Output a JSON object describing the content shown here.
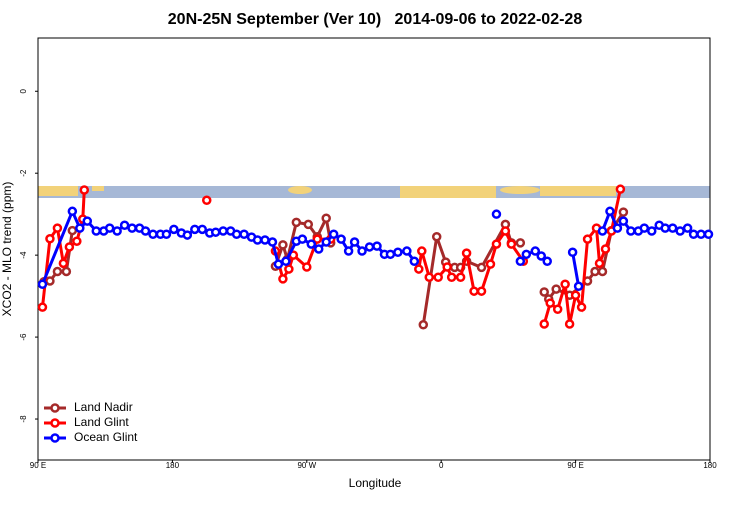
{
  "chart_data": {
    "type": "line",
    "title": "20N-25N September (Ver 10)   2014-09-06 to 2022-02-28",
    "x_label": "Longitude",
    "y_label": "XCO2 - MLO trend (ppm)",
    "xlim": [
      90,
      540
    ],
    "ylim": [
      1.3,
      -9
    ],
    "xticks": [
      {
        "value": 90,
        "label": "90 E"
      },
      180,
      {
        "value": 270,
        "label": "90 W"
      },
      {
        "value": 360,
        "label": "0"
      },
      {
        "value": 450,
        "label": "90 E"
      },
      180
    ],
    "yticks": [
      -8,
      -6,
      -4,
      -2,
      0
    ],
    "legend": "bottomleft",
    "series": [
      {
        "name": "Land Nadir",
        "color": "#a52a2a",
        "x": [
          94,
          98,
          103,
          109,
          113,
          200,
          249,
          254,
          257,
          263,
          271,
          277,
          283,
          286,
          300,
          348,
          357,
          363,
          369,
          373,
          377,
          387,
          403,
          407,
          413,
          420,
          429,
          432,
          437,
          446,
          458,
          463,
          468,
          474,
          482
        ],
        "values": [
          -4.65,
          -4.63,
          -4.4,
          -4.4,
          -3.4,
          null,
          -4.27,
          -3.75,
          -4.1,
          -3.2,
          -3.25,
          -3.55,
          -3.1,
          -3.7,
          null,
          -5.7,
          -3.55,
          -4.17,
          -4.3,
          -4.3,
          -4.15,
          -4.3,
          -3.25,
          -3.7,
          -3.7,
          null,
          -4.9,
          -5.07,
          -4.83,
          -4.98,
          -4.63,
          -4.4,
          -4.4,
          -3.4,
          -2.95
        ]
      },
      {
        "name": "Land Glint",
        "color": "#ff0000",
        "x": [
          93,
          98,
          103,
          107,
          111,
          116,
          120,
          121,
          160,
          203,
          230,
          249,
          254,
          258,
          261,
          270,
          277,
          286,
          300,
          345,
          347,
          352,
          358,
          364,
          367,
          373,
          377,
          382,
          387,
          393,
          397,
          403,
          407,
          415,
          420,
          429,
          433,
          438,
          443,
          446,
          450,
          454,
          458,
          464,
          466,
          470,
          474,
          480
        ],
        "values": [
          -5.27,
          -3.6,
          -3.34,
          -4.2,
          -3.8,
          -3.66,
          -3.12,
          -2.41,
          null,
          -2.66,
          null,
          -3.9,
          -4.58,
          -4.34,
          -4.0,
          -4.29,
          -3.61,
          -3.61,
          null,
          -4.34,
          -3.9,
          -4.54,
          -4.54,
          -4.29,
          -4.54,
          -4.54,
          -3.95,
          -4.88,
          -4.88,
          -4.22,
          -3.73,
          -3.41,
          -3.73,
          -4.15,
          null,
          -5.68,
          -5.17,
          -5.32,
          -4.71,
          -5.68,
          -4.98,
          -5.27,
          -3.61,
          -3.34,
          -4.2,
          -3.85,
          -3.41,
          -2.39
        ]
      },
      {
        "name": "Ocean Glint",
        "color": "#0000ff",
        "x": [
          93,
          113,
          118,
          123,
          129,
          134,
          138,
          143,
          148,
          153,
          158,
          162,
          167,
          172,
          176,
          181,
          186,
          190,
          195,
          200,
          205,
          209,
          214,
          219,
          223,
          228,
          233,
          237,
          242,
          247,
          251,
          256,
          263,
          267,
          273,
          278,
          283,
          288,
          293,
          298,
          302,
          307,
          312,
          317,
          322,
          326,
          331,
          337,
          342,
          370,
          397,
          405,
          413,
          417,
          423,
          427,
          431,
          440,
          448,
          452,
          460,
          468,
          473,
          478,
          482,
          487,
          492,
          496,
          501,
          506,
          510,
          515,
          520,
          525,
          529,
          534,
          539
        ],
        "values": [
          -4.71,
          -2.93,
          -3.34,
          -3.17,
          -3.41,
          -3.41,
          -3.34,
          -3.41,
          -3.27,
          -3.34,
          -3.34,
          -3.41,
          -3.49,
          -3.49,
          -3.49,
          -3.37,
          -3.46,
          -3.51,
          -3.37,
          -3.37,
          -3.46,
          -3.44,
          -3.41,
          -3.41,
          -3.49,
          -3.49,
          -3.56,
          -3.63,
          -3.63,
          -3.68,
          -4.22,
          -4.15,
          -3.66,
          -3.61,
          -3.73,
          -3.85,
          -3.68,
          -3.49,
          -3.61,
          -3.9,
          -3.68,
          -3.9,
          -3.8,
          -3.78,
          -3.98,
          -3.98,
          -3.93,
          -3.9,
          -4.15,
          null,
          -3.0,
          null,
          -4.15,
          -3.98,
          -3.9,
          -4.02,
          -4.15,
          null,
          -3.93,
          -4.76,
          null,
          -3.41,
          -2.93,
          -3.34,
          -3.17,
          -3.41,
          -3.41,
          -3.34,
          -3.41,
          -3.27,
          -3.34,
          -3.34,
          -3.41,
          -3.34,
          -3.49,
          -3.49,
          -3.49
        ]
      }
    ]
  }
}
